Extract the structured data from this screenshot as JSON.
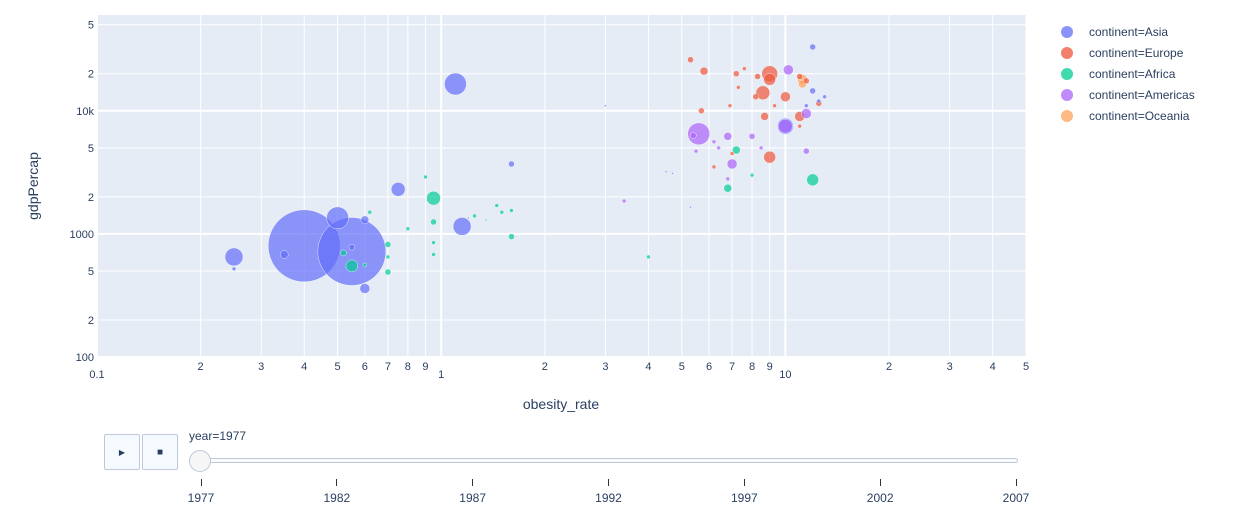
{
  "chart_data": {
    "type": "scatter",
    "xlabel": "obesity_rate",
    "ylabel": "gdpPercap",
    "xscale": "log",
    "yscale": "log",
    "xlim": [
      0.1,
      50
    ],
    "ylim": [
      100,
      60000
    ],
    "grid": true,
    "legend_position": "right",
    "x_ticks": [
      "0.1",
      "2",
      "3",
      "4",
      "5",
      "6",
      "7",
      "8",
      "9",
      "1",
      "2",
      "3",
      "4",
      "5",
      "6",
      "7",
      "8",
      "9",
      "10",
      "2",
      "3",
      "4",
      "5"
    ],
    "x_tick_values": [
      0.1,
      0.2,
      0.3,
      0.4,
      0.5,
      0.6,
      0.7,
      0.8,
      0.9,
      1,
      2,
      3,
      4,
      5,
      6,
      7,
      8,
      9,
      10,
      20,
      30,
      40,
      50
    ],
    "y_ticks": [
      "100",
      "2",
      "5",
      "1000",
      "2",
      "5",
      "10k",
      "2",
      "5"
    ],
    "y_tick_values": [
      100,
      200,
      500,
      1000,
      2000,
      5000,
      10000,
      20000,
      50000
    ],
    "series": [
      {
        "name": "continent=Asia",
        "color": "#636efa",
        "points": [
          {
            "x": 0.4,
            "y": 800,
            "s": 36
          },
          {
            "x": 0.55,
            "y": 720,
            "s": 34
          },
          {
            "x": 0.25,
            "y": 650,
            "s": 9
          },
          {
            "x": 0.25,
            "y": 520,
            "s": 2
          },
          {
            "x": 0.35,
            "y": 680,
            "s": 4
          },
          {
            "x": 0.5,
            "y": 1350,
            "s": 11
          },
          {
            "x": 0.55,
            "y": 780,
            "s": 3
          },
          {
            "x": 0.6,
            "y": 1300,
            "s": 4
          },
          {
            "x": 0.6,
            "y": 360,
            "s": 5
          },
          {
            "x": 0.75,
            "y": 2300,
            "s": 7
          },
          {
            "x": 1.1,
            "y": 16500,
            "s": 11
          },
          {
            "x": 1.15,
            "y": 1150,
            "s": 9
          },
          {
            "x": 1.6,
            "y": 3700,
            "s": 3
          },
          {
            "x": 10,
            "y": 7500,
            "s": 8
          },
          {
            "x": 12,
            "y": 33000,
            "s": 3
          },
          {
            "x": 12,
            "y": 14500,
            "s": 3
          },
          {
            "x": 11.5,
            "y": 11000,
            "s": 2
          },
          {
            "x": 12.5,
            "y": 12000,
            "s": 2
          },
          {
            "x": 13,
            "y": 13000,
            "s": 2
          },
          {
            "x": 4.5,
            "y": 3200,
            "s": 1
          },
          {
            "x": 4.7,
            "y": 3100,
            "s": 1
          },
          {
            "x": 5.3,
            "y": 1650,
            "s": 1
          },
          {
            "x": 3,
            "y": 11000,
            "s": 1
          }
        ]
      },
      {
        "name": "continent=Europe",
        "color": "#EF553B",
        "points": [
          {
            "x": 9,
            "y": 20000,
            "s": 8
          },
          {
            "x": 9,
            "y": 18000,
            "s": 6
          },
          {
            "x": 8.6,
            "y": 14000,
            "s": 7
          },
          {
            "x": 10,
            "y": 13000,
            "s": 5
          },
          {
            "x": 8.7,
            "y": 9000,
            "s": 4
          },
          {
            "x": 11,
            "y": 9000,
            "s": 5
          },
          {
            "x": 9,
            "y": 4200,
            "s": 6
          },
          {
            "x": 5.3,
            "y": 26000,
            "s": 3
          },
          {
            "x": 5.8,
            "y": 21000,
            "s": 4
          },
          {
            "x": 7.2,
            "y": 20000,
            "s": 3
          },
          {
            "x": 7.6,
            "y": 22000,
            "s": 2
          },
          {
            "x": 8.3,
            "y": 19000,
            "s": 3
          },
          {
            "x": 8.2,
            "y": 13000,
            "s": 3
          },
          {
            "x": 11,
            "y": 19000,
            "s": 3
          },
          {
            "x": 11.5,
            "y": 17500,
            "s": 3
          },
          {
            "x": 12.5,
            "y": 11500,
            "s": 3
          },
          {
            "x": 5.7,
            "y": 10000,
            "s": 3
          },
          {
            "x": 6.9,
            "y": 11000,
            "s": 2
          },
          {
            "x": 7,
            "y": 4500,
            "s": 2
          },
          {
            "x": 6.2,
            "y": 3500,
            "s": 2
          },
          {
            "x": 7.3,
            "y": 15500,
            "s": 2
          },
          {
            "x": 9.3,
            "y": 11000,
            "s": 2
          },
          {
            "x": 11,
            "y": 7500,
            "s": 2
          }
        ]
      },
      {
        "name": "continent=Africa",
        "color": "#00cc96",
        "points": [
          {
            "x": 0.55,
            "y": 550,
            "s": 6
          },
          {
            "x": 0.95,
            "y": 1950,
            "s": 7
          },
          {
            "x": 12,
            "y": 2750,
            "s": 6
          },
          {
            "x": 6.8,
            "y": 2350,
            "s": 4
          },
          {
            "x": 7.2,
            "y": 4800,
            "s": 4
          },
          {
            "x": 0.7,
            "y": 820,
            "s": 3
          },
          {
            "x": 0.7,
            "y": 650,
            "s": 2
          },
          {
            "x": 0.7,
            "y": 490,
            "s": 3
          },
          {
            "x": 0.62,
            "y": 1500,
            "s": 2
          },
          {
            "x": 0.8,
            "y": 1100,
            "s": 2
          },
          {
            "x": 0.9,
            "y": 2900,
            "s": 2
          },
          {
            "x": 0.95,
            "y": 1250,
            "s": 3
          },
          {
            "x": 0.95,
            "y": 850,
            "s": 2
          },
          {
            "x": 0.95,
            "y": 680,
            "s": 2
          },
          {
            "x": 1.2,
            "y": 1350,
            "s": 1
          },
          {
            "x": 1.25,
            "y": 1400,
            "s": 2
          },
          {
            "x": 1.35,
            "y": 1300,
            "s": 1
          },
          {
            "x": 1.45,
            "y": 1700,
            "s": 2
          },
          {
            "x": 1.5,
            "y": 1500,
            "s": 2
          },
          {
            "x": 1.6,
            "y": 1550,
            "s": 2
          },
          {
            "x": 1.6,
            "y": 950,
            "s": 3
          },
          {
            "x": 4,
            "y": 650,
            "s": 2
          },
          {
            "x": 0.52,
            "y": 700,
            "s": 3
          },
          {
            "x": 8,
            "y": 3000,
            "s": 2
          },
          {
            "x": 0.6,
            "y": 560,
            "s": 2
          }
        ]
      },
      {
        "name": "continent=Americas",
        "color": "#ab63fa",
        "points": [
          {
            "x": 5.6,
            "y": 6500,
            "s": 11
          },
          {
            "x": 10,
            "y": 7500,
            "s": 7
          },
          {
            "x": 10.2,
            "y": 21500,
            "s": 5
          },
          {
            "x": 7,
            "y": 3700,
            "s": 5
          },
          {
            "x": 6.8,
            "y": 6200,
            "s": 4
          },
          {
            "x": 8,
            "y": 6200,
            "s": 3
          },
          {
            "x": 11.5,
            "y": 9500,
            "s": 5
          },
          {
            "x": 11.5,
            "y": 4700,
            "s": 3
          },
          {
            "x": 5.4,
            "y": 6300,
            "s": 3
          },
          {
            "x": 6.4,
            "y": 5000,
            "s": 2
          },
          {
            "x": 6.8,
            "y": 2800,
            "s": 2
          },
          {
            "x": 3.4,
            "y": 1850,
            "s": 2
          },
          {
            "x": 8.5,
            "y": 5000,
            "s": 2
          },
          {
            "x": 5.5,
            "y": 4700,
            "s": 2
          },
          {
            "x": 6.2,
            "y": 5600,
            "s": 2
          }
        ]
      },
      {
        "name": "continent=Oceania",
        "color": "#FFA15A",
        "points": [
          {
            "x": 11.2,
            "y": 18000,
            "s": 5
          },
          {
            "x": 11.2,
            "y": 16500,
            "s": 4
          }
        ]
      }
    ]
  },
  "slider": {
    "label": "year=1977",
    "play_icon": "play-icon",
    "stop_icon": "stop-icon",
    "play_glyph": "▶",
    "stop_glyph": "■",
    "current_year": 1977,
    "steps": [
      "1977",
      "1982",
      "1987",
      "1992",
      "1997",
      "2002",
      "2007"
    ]
  }
}
